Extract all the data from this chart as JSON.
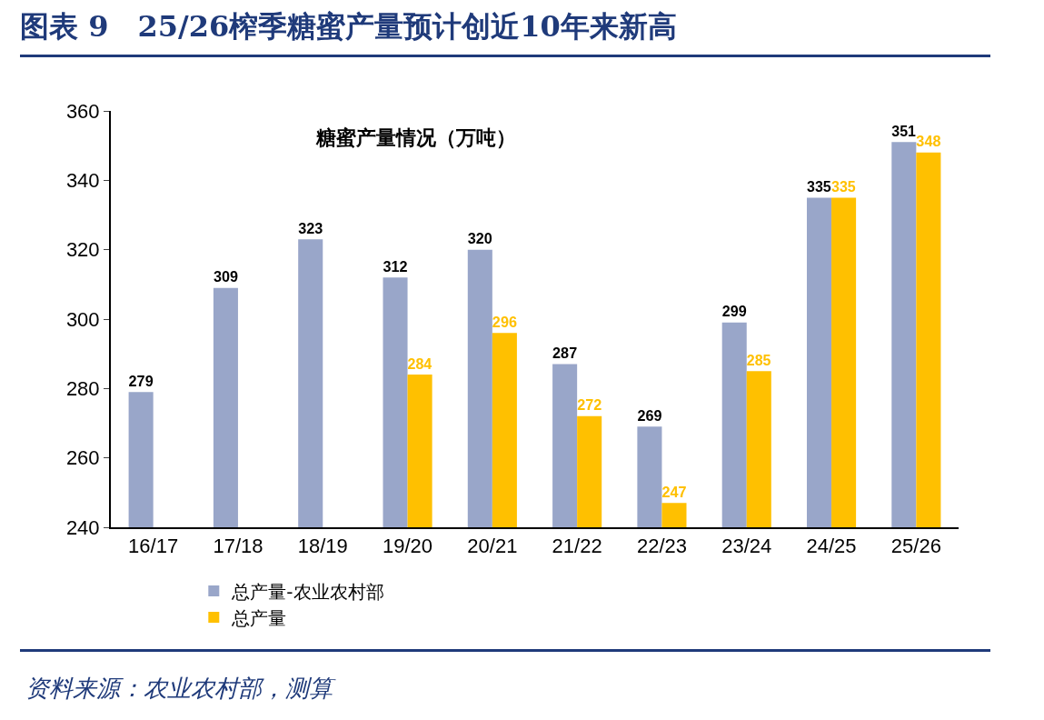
{
  "chart_data": {
    "type": "bar",
    "title": "图表 9　25/26榨季糖蜜产量预计创近10年来新高",
    "subtitle": "糖蜜产量情况（万吨）",
    "categories": [
      "16/17",
      "17/18",
      "18/19",
      "19/20",
      "20/21",
      "21/22",
      "22/23",
      "23/24",
      "24/25",
      "25/26"
    ],
    "series": [
      {
        "name": "总产量-农业农村部",
        "color": "#99a6c9",
        "values": [
          279,
          309,
          323,
          312,
          320,
          287,
          269,
          299,
          335,
          351
        ]
      },
      {
        "name": "总产量",
        "color": "#ffc000",
        "values": [
          null,
          null,
          null,
          284,
          296,
          272,
          247,
          285,
          335,
          348
        ]
      }
    ],
    "ylim": [
      240,
      360
    ],
    "yticks": [
      240,
      260,
      280,
      300,
      320,
      340,
      360
    ],
    "grid": false,
    "legend": "bottom",
    "data_labels": true,
    "annotations": [
      "资料来源：农业农村部，测算"
    ]
  }
}
